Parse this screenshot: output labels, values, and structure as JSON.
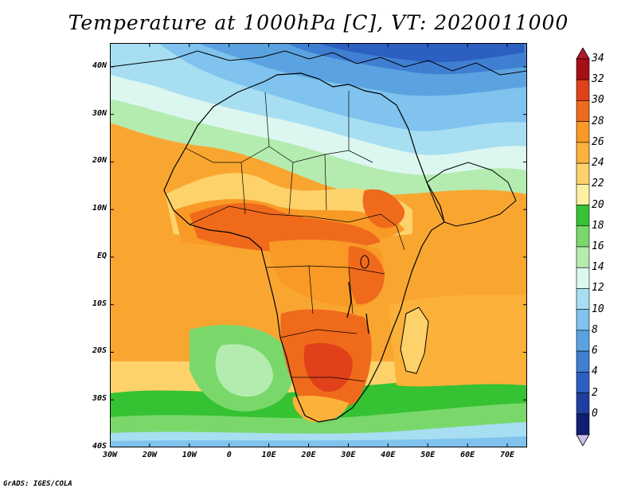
{
  "title": "Temperature at 1000hPa [C], VT: 2020011000",
  "credit": "GrADS: IGES/COLA",
  "axes": {
    "lat_ticks": [
      "40N",
      "30N",
      "20N",
      "10N",
      "EQ",
      "10S",
      "20S",
      "30S",
      "40S"
    ],
    "lat_values": [
      40,
      30,
      20,
      10,
      0,
      -10,
      -20,
      -30,
      -40
    ],
    "lon_ticks": [
      "30W",
      "20W",
      "10W",
      "0",
      "10E",
      "20E",
      "30E",
      "40E",
      "50E",
      "60E",
      "70E"
    ],
    "lon_values": [
      -30,
      -20,
      -10,
      0,
      10,
      20,
      30,
      40,
      50,
      60,
      70
    ],
    "lon_range": [
      -30,
      75
    ],
    "lat_range": [
      -40,
      45
    ]
  },
  "colorbar": {
    "labels": [
      "34",
      "32",
      "30",
      "28",
      "26",
      "24",
      "22",
      "20",
      "18",
      "16",
      "14",
      "12",
      "10",
      "8",
      "6",
      "4",
      "2",
      "0"
    ],
    "colors": [
      "#a50f15",
      "#e0401a",
      "#f06a1c",
      "#f89a25",
      "#fbb13a",
      "#fdd26a",
      "#fef0a2",
      "#35c233",
      "#7ad86b",
      "#b4ecb0",
      "#dcf7f0",
      "#a7def2",
      "#7fc3ee",
      "#5ba3e0",
      "#3f7fd2",
      "#2c5fc0",
      "#1e3fa0",
      "#0f1f70"
    ],
    "over_color": "#b2182b",
    "under_color": "#c9c0e8"
  }
}
